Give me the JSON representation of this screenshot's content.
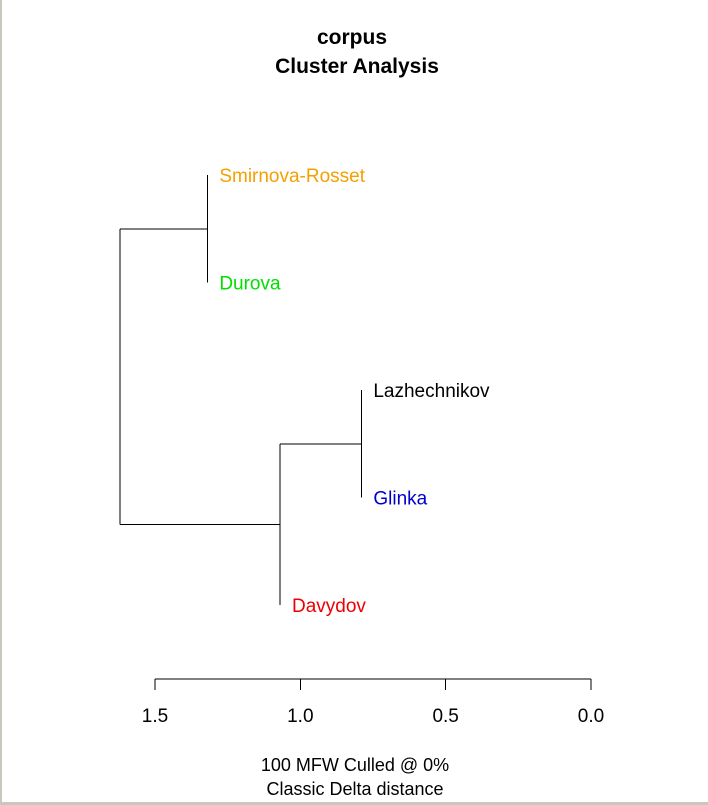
{
  "chart_data": {
    "type": "dendrogram",
    "title": "corpus",
    "subtitle": "Cluster Analysis",
    "caption_lines": [
      "100 MFW  Culled @ 0%",
      "Classic Delta distance"
    ],
    "axis": {
      "range": [
        1.5,
        0.0
      ],
      "ticks": [
        1.5,
        1.0,
        0.5,
        0.0
      ],
      "tick_labels": [
        "1.5",
        "1.0",
        "0.5",
        "0.0"
      ]
    },
    "leaves": [
      {
        "name": "Smirnova-Rosset",
        "color": "#f5a000"
      },
      {
        "name": "Durova",
        "color": "#00e000"
      },
      {
        "name": "Lazhechnikov",
        "color": "#000000"
      },
      {
        "name": "Glinka",
        "color": "#0000cc"
      },
      {
        "name": "Davydov",
        "color": "#ee0000"
      }
    ],
    "merges": [
      {
        "children": [
          "Smirnova-Rosset",
          "Durova"
        ],
        "height": 1.32
      },
      {
        "children": [
          "Lazhechnikov",
          "Glinka"
        ],
        "height": 0.79
      },
      {
        "children": [
          "Lazhechnikov+Glinka",
          "Davydov"
        ],
        "height": 1.07
      },
      {
        "children": [
          "Smirnova-Rosset+Durova",
          "Lazhechnikov+Glinka+Davydov"
        ],
        "height": 1.62
      }
    ]
  }
}
